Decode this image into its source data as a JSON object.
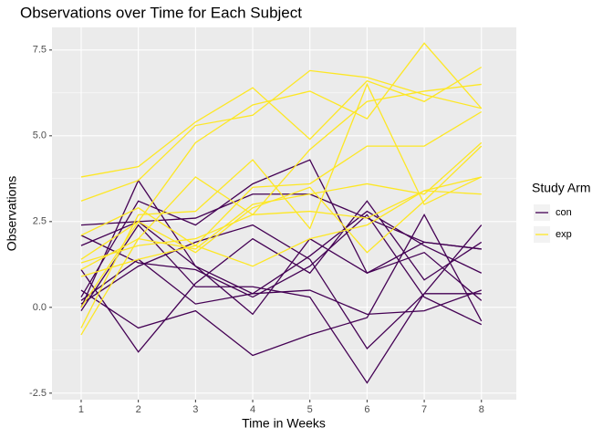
{
  "chart_data": {
    "type": "line",
    "title": "Observations over Time for Each Subject",
    "x_label": "Time in Weeks",
    "y_label": "Observations",
    "legend_title": "Study Arm",
    "legend_position": "right",
    "grid": true,
    "x": [
      1,
      2,
      3,
      4,
      5,
      6,
      7,
      8
    ],
    "xlim": [
      0.49,
      8.61
    ],
    "xticks": [
      1,
      2,
      3,
      4,
      5,
      6,
      7,
      8
    ],
    "ylim": [
      -2.69,
      8.16
    ],
    "yticks": [
      -2.5,
      {
        "value": 0,
        "label": "0.0"
      },
      2.5,
      {
        "value": 5,
        "label": "5.0"
      },
      7.5
    ],
    "series": [
      {
        "name": "con",
        "color": "#440154",
        "values": [
          2.4,
          2.5,
          1.2,
          0.4,
          0.5,
          -0.2,
          -0.1,
          0.5
        ]
      },
      {
        "name": "con",
        "color": "#440154",
        "values": [
          2.1,
          1.3,
          1.1,
          0.3,
          1.2,
          2.7,
          0.3,
          -0.5
        ]
      },
      {
        "name": "con",
        "color": "#440154",
        "values": [
          1.8,
          2.5,
          2.6,
          3.3,
          3.3,
          2.6,
          1.9,
          1.7
        ]
      },
      {
        "name": "con",
        "color": "#440154",
        "values": [
          1.1,
          -1.3,
          0.7,
          2.0,
          1.0,
          3.1,
          0.8,
          1.9
        ]
      },
      {
        "name": "con",
        "color": "#440154",
        "values": [
          0.5,
          -0.6,
          -0.1,
          -1.4,
          -0.8,
          -0.3,
          2.7,
          -0.4
        ]
      },
      {
        "name": "con",
        "color": "#440154",
        "values": [
          0.2,
          1.4,
          0.1,
          0.4,
          1.5,
          2.8,
          1.8,
          1.0
        ]
      },
      {
        "name": "con",
        "color": "#440154",
        "values": [
          0.1,
          1.2,
          1.9,
          2.4,
          1.4,
          -1.2,
          0.4,
          2.4
        ]
      },
      {
        "name": "con",
        "color": "#440154",
        "values": [
          0.0,
          3.7,
          1.2,
          -0.2,
          2.0,
          1.0,
          1.9,
          1.7
        ]
      },
      {
        "name": "con",
        "color": "#440154",
        "values": [
          -0.1,
          2.4,
          0.6,
          0.6,
          0.3,
          -2.2,
          0.4,
          0.4
        ]
      },
      {
        "name": "con",
        "color": "#440154",
        "values": [
          0.3,
          3.1,
          2.4,
          3.6,
          4.3,
          1.0,
          1.6,
          0.2
        ]
      },
      {
        "name": "exp",
        "color": "#fde725",
        "values": [
          3.8,
          4.1,
          5.4,
          6.4,
          4.9,
          6.6,
          6.0,
          7.0
        ]
      },
      {
        "name": "exp",
        "color": "#fde725",
        "values": [
          3.1,
          3.7,
          5.3,
          5.6,
          6.9,
          6.7,
          6.2,
          5.8
        ]
      },
      {
        "name": "exp",
        "color": "#fde725",
        "values": [
          1.4,
          2.5,
          4.8,
          5.9,
          6.3,
          5.5,
          7.7,
          5.8
        ]
      },
      {
        "name": "exp",
        "color": "#fde725",
        "values": [
          1.1,
          2.0,
          3.8,
          2.7,
          4.6,
          6.0,
          6.3,
          6.5
        ]
      },
      {
        "name": "exp",
        "color": "#fde725",
        "values": [
          0.9,
          1.4,
          1.8,
          3.5,
          3.6,
          4.7,
          4.7,
          5.7
        ]
      },
      {
        "name": "exp",
        "color": "#fde725",
        "values": [
          -0.6,
          2.7,
          2.8,
          4.3,
          2.3,
          6.5,
          3.0,
          3.8
        ]
      },
      {
        "name": "exp",
        "color": "#fde725",
        "values": [
          -0.8,
          2.0,
          1.7,
          3.0,
          3.3,
          3.6,
          3.3,
          4.8
        ]
      },
      {
        "name": "exp",
        "color": "#fde725",
        "values": [
          2.1,
          2.9,
          1.8,
          1.2,
          2.0,
          2.4,
          3.4,
          3.8
        ]
      },
      {
        "name": "exp",
        "color": "#fde725",
        "values": [
          1.3,
          1.8,
          2.0,
          2.7,
          2.8,
          2.6,
          3.4,
          3.3
        ]
      },
      {
        "name": "exp",
        "color": "#fde725",
        "values": [
          0.0,
          2.5,
          1.6,
          2.9,
          3.5,
          1.6,
          3.1,
          4.7
        ]
      }
    ]
  }
}
